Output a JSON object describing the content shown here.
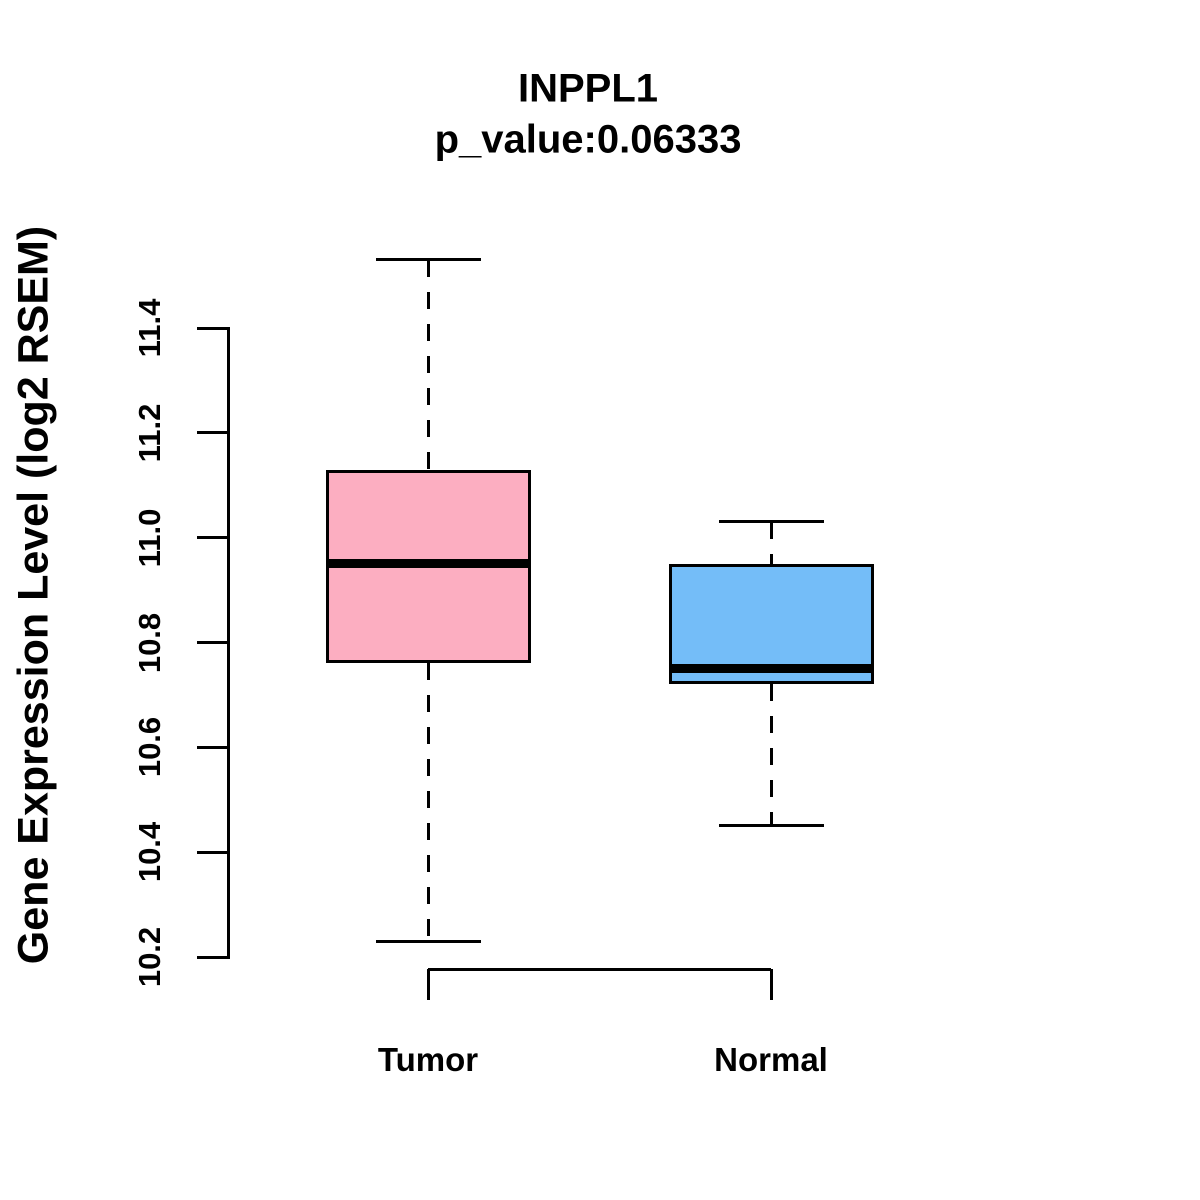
{
  "figure": {
    "title": "INPPL1",
    "subtitle": "p_value:0.06333",
    "y_axis_label": "Gene Expression Level (log2 RSEM)"
  },
  "chart_data": {
    "type": "boxplot",
    "title": "INPPL1",
    "subtitle": "p_value:0.06333",
    "p_value": 0.06333,
    "xlabel": "",
    "ylabel": "Gene Expression Level (log2 RSEM)",
    "ylim": [
      10.2,
      11.4
    ],
    "ytick_labels": [
      "10.2",
      "10.4",
      "10.6",
      "10.8",
      "11.0",
      "11.2",
      "11.4"
    ],
    "categories": [
      "Tumor",
      "Normal"
    ],
    "grid": false,
    "legend": false,
    "series": [
      {
        "name": "Tumor",
        "color": "#FCAEC1",
        "whisker_low": 10.23,
        "q1": 10.76,
        "median": 10.95,
        "q3": 11.13,
        "whisker_high": 11.53
      },
      {
        "name": "Normal",
        "color": "#74BDF8",
        "whisker_low": 10.45,
        "q1": 10.72,
        "median": 10.75,
        "q3": 10.95,
        "whisker_high": 11.03
      }
    ]
  }
}
